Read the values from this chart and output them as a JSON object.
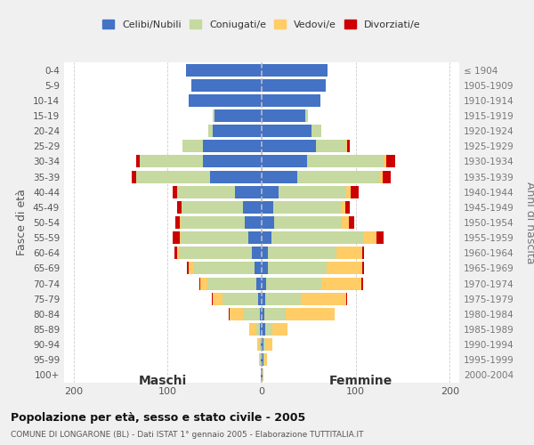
{
  "age_groups": [
    "0-4",
    "5-9",
    "10-14",
    "15-19",
    "20-24",
    "25-29",
    "30-34",
    "35-39",
    "40-44",
    "45-49",
    "50-54",
    "55-59",
    "60-64",
    "65-69",
    "70-74",
    "75-79",
    "80-84",
    "85-89",
    "90-94",
    "95-99",
    "100+"
  ],
  "birth_years": [
    "2000-2004",
    "1995-1999",
    "1990-1994",
    "1985-1989",
    "1980-1984",
    "1975-1979",
    "1970-1974",
    "1965-1969",
    "1960-1964",
    "1955-1959",
    "1950-1954",
    "1945-1949",
    "1940-1944",
    "1935-1939",
    "1930-1934",
    "1925-1929",
    "1920-1924",
    "1915-1919",
    "1910-1914",
    "1905-1909",
    "≤ 1904"
  ],
  "maschi_celibi": [
    80,
    75,
    78,
    50,
    52,
    62,
    62,
    55,
    28,
    20,
    18,
    14,
    10,
    8,
    6,
    4,
    2,
    2,
    1,
    1,
    1
  ],
  "maschi_coniugati": [
    0,
    0,
    0,
    2,
    5,
    22,
    68,
    78,
    62,
    65,
    68,
    72,
    78,
    65,
    52,
    38,
    18,
    4,
    2,
    1,
    0
  ],
  "maschi_vedovi": [
    0,
    0,
    0,
    0,
    0,
    0,
    0,
    0,
    0,
    0,
    1,
    1,
    2,
    5,
    7,
    10,
    14,
    7,
    2,
    1,
    0
  ],
  "maschi_divorziati": [
    0,
    0,
    0,
    0,
    0,
    0,
    3,
    5,
    5,
    5,
    5,
    8,
    3,
    1,
    1,
    1,
    1,
    0,
    0,
    0,
    0
  ],
  "femmine_nubili": [
    70,
    68,
    62,
    46,
    53,
    58,
    48,
    38,
    18,
    12,
    13,
    10,
    7,
    7,
    5,
    4,
    3,
    4,
    2,
    2,
    1
  ],
  "femmine_coniugate": [
    0,
    0,
    0,
    3,
    10,
    32,
    82,
    88,
    72,
    72,
    72,
    98,
    72,
    62,
    58,
    38,
    23,
    7,
    2,
    1,
    0
  ],
  "femmine_vedove": [
    0,
    0,
    0,
    0,
    0,
    1,
    2,
    3,
    5,
    5,
    8,
    14,
    28,
    38,
    43,
    48,
    52,
    16,
    7,
    3,
    1
  ],
  "femmine_divorziate": [
    0,
    0,
    0,
    0,
    0,
    3,
    10,
    8,
    8,
    5,
    5,
    8,
    2,
    2,
    2,
    1,
    0,
    0,
    0,
    0,
    0
  ],
  "colors": {
    "celibi": "#4472C4",
    "coniugati": "#C5D9A0",
    "vedovi": "#FFCC66",
    "divorziati": "#CC0000"
  },
  "xlim": 210,
  "title": "Popolazione per età, sesso e stato civile - 2005",
  "subtitle": "COMUNE DI LONGARONE (BL) - Dati ISTAT 1° gennaio 2005 - Elaborazione TUTTITALIA.IT",
  "ylabel_left": "Fasce di età",
  "ylabel_right": "Anni di nascita",
  "xlabel_left": "Maschi",
  "xlabel_right": "Femmine",
  "bg_color": "#F0F0F0",
  "plot_bg": "#FFFFFF"
}
